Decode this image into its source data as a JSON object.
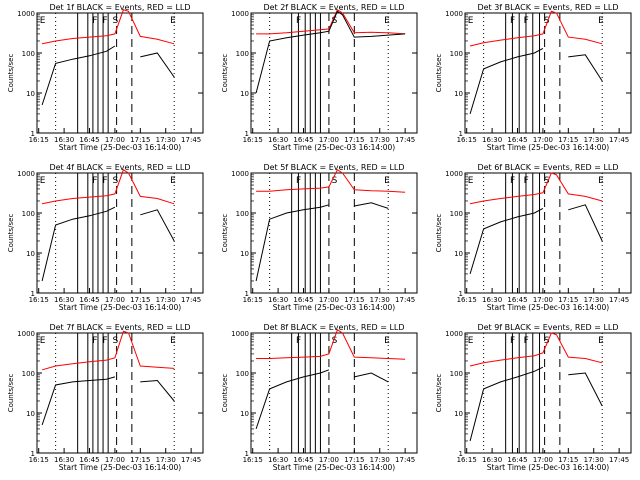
{
  "colors": {
    "events": "#000000",
    "lld": "#ff0000",
    "background": "#ffffff"
  },
  "chart_data": [
    {
      "type": "line",
      "title": "Det 1f BLACK = Events, RED = LLD",
      "xlabel": "Start Time (25-Dec-03 16:14:00)",
      "ylabel": "Counts/sec",
      "y_scale": "log",
      "ylim": [
        1,
        1000
      ],
      "x_ticks": [
        "16:15",
        "16:30",
        "16:45",
        "17:00",
        "17:15",
        "17:30",
        "17:45"
      ],
      "y_ticks": [
        "1",
        "10",
        "100",
        "1000"
      ],
      "markers": [
        {
          "label": "E",
          "time": "16:15"
        },
        {
          "label": "F",
          "time": "16:46"
        },
        {
          "label": "F",
          "time": "16:52"
        },
        {
          "label": "S",
          "time": "16:58"
        },
        {
          "label": "E",
          "time": "17:32"
        }
      ],
      "solid_lines": [
        "16:38",
        "16:44",
        "16:47",
        "16:50",
        "16:53",
        "16:56"
      ],
      "dashed_lines": [
        "17:01",
        "17:10"
      ],
      "dotted_lines": [
        "16:25",
        "17:35"
      ],
      "x": [
        "16:17",
        "16:25",
        "16:35",
        "16:45",
        "16:55",
        "17:00",
        "17:05",
        "17:08",
        "17:15",
        "17:25",
        "17:35"
      ],
      "series": [
        {
          "name": "Events",
          "values": [
            5,
            55,
            70,
            85,
            110,
            150,
            null,
            null,
            80,
            100,
            25
          ]
        },
        {
          "name": "LLD",
          "values": [
            170,
            200,
            230,
            250,
            270,
            300,
            1200,
            1100,
            260,
            220,
            170
          ]
        }
      ]
    },
    {
      "type": "line",
      "title": "Det 2f BLACK = Events, RED = LLD",
      "xlabel": "Start Time (25-Dec-03 16:14:00)",
      "ylabel": "Counts/sec",
      "y_scale": "log",
      "ylim": [
        1,
        1000
      ],
      "x_ticks": [
        "16:15",
        "16:30",
        "16:45",
        "17:00",
        "17:15",
        "17:30",
        "17:45"
      ],
      "y_ticks": [
        "1",
        "10",
        "100",
        "1000"
      ],
      "markers": [
        {
          "label": "F",
          "time": "16:40"
        },
        {
          "label": "S",
          "time": "17:01"
        },
        {
          "label": "E",
          "time": "17:32"
        }
      ],
      "solid_lines": [
        "16:38",
        "16:42",
        "16:46",
        "16:49",
        "16:52",
        "16:55"
      ],
      "dashed_lines": [
        "17:00",
        "17:15"
      ],
      "dotted_lines": [
        "16:25",
        "17:35"
      ],
      "x": [
        "16:17",
        "16:25",
        "16:35",
        "16:45",
        "16:55",
        "17:00",
        "17:05",
        "17:08",
        "17:15",
        "17:25",
        "17:35",
        "17:45"
      ],
      "series": [
        {
          "name": "Events",
          "values": [
            10,
            200,
            240,
            280,
            320,
            350,
            1100,
            900,
            250,
            260,
            280,
            300
          ]
        },
        {
          "name": "LLD",
          "values": [
            300,
            300,
            320,
            350,
            380,
            400,
            1200,
            1000,
            320,
            330,
            320,
            300
          ]
        }
      ]
    },
    {
      "type": "line",
      "title": "Det 3f BLACK = Events, RED = LLD",
      "xlabel": "Start Time (25-Dec-03 16:14:00)",
      "ylabel": "Counts/sec",
      "y_scale": "log",
      "ylim": [
        1,
        1000
      ],
      "x_ticks": [
        "16:15",
        "16:30",
        "16:45",
        "17:00",
        "17:15",
        "17:30",
        "17:45"
      ],
      "y_ticks": [
        "1",
        "10",
        "100",
        "1000"
      ],
      "markers": [
        {
          "label": "E",
          "time": "16:15"
        },
        {
          "label": "F",
          "time": "16:40"
        },
        {
          "label": "F",
          "time": "16:48"
        },
        {
          "label": "S",
          "time": "17:00"
        },
        {
          "label": "E",
          "time": "17:32"
        }
      ],
      "solid_lines": [
        "16:38",
        "16:42",
        "16:46",
        "16:50",
        "16:54",
        "16:58"
      ],
      "dashed_lines": [
        "17:01",
        "17:10"
      ],
      "dotted_lines": [
        "16:25",
        "17:35"
      ],
      "x": [
        "16:17",
        "16:25",
        "16:35",
        "16:45",
        "16:55",
        "17:00",
        "17:05",
        "17:08",
        "17:15",
        "17:25",
        "17:35"
      ],
      "series": [
        {
          "name": "Events",
          "values": [
            3,
            40,
            60,
            80,
            100,
            130,
            null,
            null,
            80,
            90,
            20
          ]
        },
        {
          "name": "LLD",
          "values": [
            150,
            180,
            210,
            240,
            270,
            300,
            1100,
            1000,
            250,
            220,
            170
          ]
        }
      ]
    },
    {
      "type": "line",
      "title": "Det 4f BLACK = Events, RED = LLD",
      "xlabel": "Start Time (25-Dec-03 16:14:00)",
      "ylabel": "Counts/sec",
      "y_scale": "log",
      "ylim": [
        1,
        1000
      ],
      "x_ticks": [
        "16:15",
        "16:30",
        "16:45",
        "17:00",
        "17:15",
        "17:30",
        "17:45"
      ],
      "y_ticks": [
        "1",
        "10",
        "100",
        "1000"
      ],
      "markers": [
        {
          "label": "E",
          "time": "16:15"
        },
        {
          "label": "F",
          "time": "16:46"
        },
        {
          "label": "F",
          "time": "16:52"
        },
        {
          "label": "S",
          "time": "16:58"
        },
        {
          "label": "E",
          "time": "17:32"
        }
      ],
      "solid_lines": [
        "16:38",
        "16:44",
        "16:47",
        "16:50",
        "16:53",
        "16:56"
      ],
      "dashed_lines": [
        "17:01",
        "17:10"
      ],
      "dotted_lines": [
        "16:25",
        "17:35"
      ],
      "x": [
        "16:17",
        "16:25",
        "16:35",
        "16:45",
        "16:55",
        "17:00",
        "17:05",
        "17:08",
        "17:15",
        "17:25",
        "17:35"
      ],
      "series": [
        {
          "name": "Events",
          "values": [
            2,
            50,
            70,
            85,
            110,
            140,
            null,
            null,
            90,
            120,
            20
          ]
        },
        {
          "name": "LLD",
          "values": [
            170,
            200,
            230,
            250,
            270,
            300,
            1200,
            1000,
            260,
            230,
            170
          ]
        }
      ]
    },
    {
      "type": "line",
      "title": "Det 5f BLACK = Events, RED = LLD",
      "xlabel": "Start Time (25-Dec-03 16:14:00)",
      "ylabel": "Counts/sec",
      "y_scale": "log",
      "ylim": [
        1,
        1000
      ],
      "x_ticks": [
        "16:15",
        "16:30",
        "16:45",
        "17:00",
        "17:15",
        "17:30",
        "17:45"
      ],
      "y_ticks": [
        "1",
        "10",
        "100",
        "1000"
      ],
      "markers": [
        {
          "label": "F",
          "time": "16:40"
        },
        {
          "label": "S",
          "time": "17:01"
        },
        {
          "label": "E",
          "time": "17:32"
        }
      ],
      "solid_lines": [
        "16:38",
        "16:42",
        "16:46",
        "16:49",
        "16:52",
        "16:55"
      ],
      "dashed_lines": [
        "17:00",
        "17:15"
      ],
      "dotted_lines": [
        "16:25",
        "17:35"
      ],
      "x": [
        "16:17",
        "16:25",
        "16:35",
        "16:45",
        "16:55",
        "17:00",
        "17:05",
        "17:08",
        "17:15",
        "17:25",
        "17:35",
        "17:45"
      ],
      "series": [
        {
          "name": "Events",
          "values": [
            2,
            70,
            100,
            120,
            140,
            160,
            null,
            null,
            150,
            180,
            130,
            null
          ]
        },
        {
          "name": "LLD",
          "values": [
            350,
            350,
            380,
            400,
            420,
            450,
            1200,
            1000,
            380,
            360,
            350,
            330
          ]
        }
      ]
    },
    {
      "type": "line",
      "title": "Det 6f BLACK = Events, RED = LLD",
      "xlabel": "Start Time (25-Dec-03 16:14:00)",
      "ylabel": "Counts/sec",
      "y_scale": "log",
      "ylim": [
        1,
        1000
      ],
      "x_ticks": [
        "16:15",
        "16:30",
        "16:45",
        "17:00",
        "17:15",
        "17:30",
        "17:45"
      ],
      "y_ticks": [
        "1",
        "10",
        "100",
        "1000"
      ],
      "markers": [
        {
          "label": "E",
          "time": "16:15"
        },
        {
          "label": "F",
          "time": "16:40"
        },
        {
          "label": "F",
          "time": "16:48"
        },
        {
          "label": "S",
          "time": "17:00"
        },
        {
          "label": "E",
          "time": "17:32"
        }
      ],
      "solid_lines": [
        "16:38",
        "16:42",
        "16:46",
        "16:50",
        "16:54",
        "16:58"
      ],
      "dashed_lines": [
        "17:01",
        "17:10"
      ],
      "dotted_lines": [
        "16:25",
        "17:35"
      ],
      "x": [
        "16:17",
        "16:25",
        "16:35",
        "16:45",
        "16:55",
        "17:00",
        "17:05",
        "17:08",
        "17:15",
        "17:25",
        "17:35"
      ],
      "series": [
        {
          "name": "Events",
          "values": [
            3,
            40,
            60,
            80,
            100,
            130,
            null,
            null,
            120,
            160,
            20
          ]
        },
        {
          "name": "LLD",
          "values": [
            170,
            200,
            230,
            260,
            290,
            320,
            1000,
            900,
            300,
            260,
            200
          ]
        }
      ]
    },
    {
      "type": "line",
      "title": "Det 7f BLACK = Events, RED = LLD",
      "xlabel": "Start Time (25-Dec-03 16:14:00)",
      "ylabel": "Counts/sec",
      "y_scale": "log",
      "ylim": [
        1,
        1000
      ],
      "x_ticks": [
        "16:15",
        "16:30",
        "16:45",
        "17:00",
        "17:15",
        "17:30",
        "17:45"
      ],
      "y_ticks": [
        "1",
        "10",
        "100",
        "1000"
      ],
      "markers": [
        {
          "label": "E",
          "time": "16:15"
        },
        {
          "label": "F",
          "time": "16:46"
        },
        {
          "label": "F",
          "time": "16:52"
        },
        {
          "label": "S",
          "time": "16:58"
        },
        {
          "label": "E",
          "time": "17:32"
        }
      ],
      "solid_lines": [
        "16:38",
        "16:44",
        "16:47",
        "16:50",
        "16:53",
        "16:56"
      ],
      "dashed_lines": [
        "17:01",
        "17:10"
      ],
      "dotted_lines": [
        "16:25",
        "17:35"
      ],
      "x": [
        "16:17",
        "16:25",
        "16:35",
        "16:45",
        "16:55",
        "17:00",
        "17:05",
        "17:08",
        "17:15",
        "17:25",
        "17:35"
      ],
      "series": [
        {
          "name": "Events",
          "values": [
            5,
            50,
            60,
            65,
            70,
            80,
            null,
            null,
            60,
            65,
            20
          ]
        },
        {
          "name": "LLD",
          "values": [
            120,
            150,
            170,
            190,
            210,
            240,
            1100,
            1000,
            150,
            140,
            130
          ]
        }
      ]
    },
    {
      "type": "line",
      "title": "Det 8f BLACK = Events, RED = LLD",
      "xlabel": "Start Time (25-Dec-03 16:14:00)",
      "ylabel": "Counts/sec",
      "y_scale": "log",
      "ylim": [
        1,
        1000
      ],
      "x_ticks": [
        "16:15",
        "16:30",
        "16:45",
        "17:00",
        "17:15",
        "17:30",
        "17:45"
      ],
      "y_ticks": [
        "1",
        "10",
        "100",
        "1000"
      ],
      "markers": [
        {
          "label": "F",
          "time": "16:40"
        },
        {
          "label": "S",
          "time": "17:01"
        },
        {
          "label": "E",
          "time": "17:32"
        }
      ],
      "solid_lines": [
        "16:38",
        "16:42",
        "16:46",
        "16:49",
        "16:52",
        "16:55"
      ],
      "dashed_lines": [
        "17:00",
        "17:15"
      ],
      "dotted_lines": [
        "16:25",
        "17:35"
      ],
      "x": [
        "16:17",
        "16:25",
        "16:35",
        "16:45",
        "16:55",
        "17:00",
        "17:05",
        "17:08",
        "17:15",
        "17:25",
        "17:35",
        "17:45"
      ],
      "series": [
        {
          "name": "Events",
          "values": [
            4,
            40,
            60,
            80,
            100,
            120,
            null,
            null,
            80,
            100,
            60,
            null
          ]
        },
        {
          "name": "LLD",
          "values": [
            230,
            230,
            240,
            250,
            260,
            300,
            1200,
            1000,
            250,
            240,
            230,
            220
          ]
        }
      ]
    },
    {
      "type": "line",
      "title": "Det 9f BLACK = Events, RED = LLD",
      "xlabel": "Start Time (25-Dec-03 16:14:00)",
      "ylabel": "Counts/sec",
      "y_scale": "log",
      "ylim": [
        1,
        1000
      ],
      "x_ticks": [
        "16:15",
        "16:30",
        "16:45",
        "17:00",
        "17:15",
        "17:30",
        "17:45"
      ],
      "y_ticks": [
        "1",
        "10",
        "100",
        "1000"
      ],
      "markers": [
        {
          "label": "E",
          "time": "16:15"
        },
        {
          "label": "F",
          "time": "16:40"
        },
        {
          "label": "F",
          "time": "16:48"
        },
        {
          "label": "S",
          "time": "17:00"
        },
        {
          "label": "E",
          "time": "17:32"
        }
      ],
      "solid_lines": [
        "16:38",
        "16:42",
        "16:46",
        "16:50",
        "16:54",
        "16:58"
      ],
      "dashed_lines": [
        "17:01",
        "17:10"
      ],
      "dotted_lines": [
        "16:25",
        "17:35"
      ],
      "x": [
        "16:17",
        "16:25",
        "16:35",
        "16:45",
        "16:55",
        "17:00",
        "17:05",
        "17:08",
        "17:15",
        "17:25",
        "17:35"
      ],
      "series": [
        {
          "name": "Events",
          "values": [
            2,
            40,
            60,
            80,
            110,
            140,
            null,
            null,
            90,
            100,
            15
          ]
        },
        {
          "name": "LLD",
          "values": [
            150,
            180,
            210,
            240,
            270,
            320,
            1000,
            900,
            250,
            230,
            180
          ]
        }
      ]
    }
  ]
}
